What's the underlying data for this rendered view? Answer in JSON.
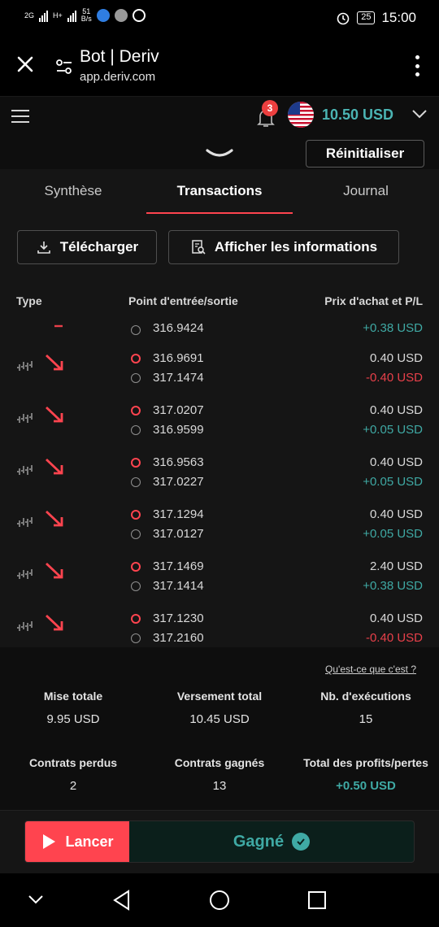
{
  "status_bar": {
    "net_type_1": "2G",
    "net_type_2": "H+",
    "speed_value": "51",
    "speed_unit": "B/s",
    "battery": "25",
    "time": "15:00"
  },
  "browser": {
    "title": "Bot | Deriv",
    "url": "app.deriv.com"
  },
  "header": {
    "notification_count": "3",
    "balance": "10.50 USD",
    "reset_label": "Réinitialiser"
  },
  "tabs": [
    {
      "label": "Synthèse"
    },
    {
      "label": "Transactions"
    },
    {
      "label": "Journal"
    }
  ],
  "actions": {
    "download_label": "Télécharger",
    "info_label": "Afficher les informations"
  },
  "table": {
    "headers": {
      "type": "Type",
      "entry_exit": "Point d'entrée/sortie",
      "price_pl": "Prix d'achat et P/L"
    },
    "partial_row": {
      "exit": "316.9424",
      "pl": "+0.38 USD"
    },
    "rows": [
      {
        "entry": "316.9691",
        "exit": "317.1474",
        "price": "0.40 USD",
        "pl": "-0.40 USD",
        "pl_type": "neg"
      },
      {
        "entry": "317.0207",
        "exit": "316.9599",
        "price": "0.40 USD",
        "pl": "+0.05 USD",
        "pl_type": "pos"
      },
      {
        "entry": "316.9563",
        "exit": "317.0227",
        "price": "0.40 USD",
        "pl": "+0.05 USD",
        "pl_type": "pos"
      },
      {
        "entry": "317.1294",
        "exit": "317.0127",
        "price": "0.40 USD",
        "pl": "+0.05 USD",
        "pl_type": "pos"
      },
      {
        "entry": "317.1469",
        "exit": "317.1414",
        "price": "2.40 USD",
        "pl": "+0.38 USD",
        "pl_type": "pos"
      },
      {
        "entry": "317.1230",
        "exit": "317.2160",
        "price": "0.40 USD",
        "pl": "-0.40 USD",
        "pl_type": "neg"
      }
    ]
  },
  "summary": {
    "whatis": "Qu'est-ce que c'est ?",
    "total_stake_label": "Mise totale",
    "total_stake": "9.95 USD",
    "total_payout_label": "Versement total",
    "total_payout": "10.45 USD",
    "runs_label": "Nb. d'exécutions",
    "runs": "15",
    "lost_label": "Contrats perdus",
    "lost": "2",
    "won_label": "Contrats gagnés",
    "won": "13",
    "profit_label": "Total des profits/pertes",
    "profit": "+0.50 USD"
  },
  "run": {
    "run_label": "Lancer",
    "status": "Gagné"
  },
  "colors": {
    "accent_red": "#ff444f",
    "profit_green": "#3fa9a4",
    "loss_red": "#e8404a"
  },
  "icons": [
    "close-icon",
    "tune-icon",
    "more-vert-icon",
    "menu-icon",
    "bell-icon",
    "us-flag-icon",
    "chevron-down-icon",
    "download-icon",
    "report-search-icon",
    "play-icon",
    "check-icon",
    "back-icon",
    "home-icon",
    "recents-icon"
  ]
}
